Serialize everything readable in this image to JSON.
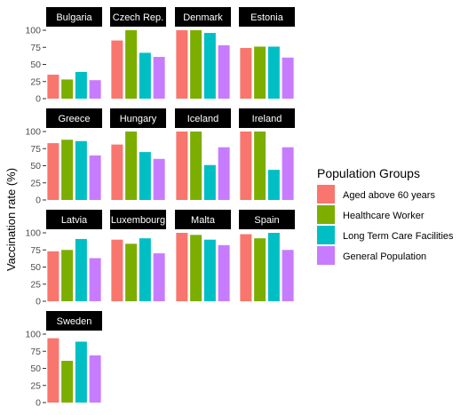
{
  "chart_data": {
    "type": "bar",
    "ylabel": "Vaccination rate (%)",
    "ylim": [
      0,
      100
    ],
    "yticks": [
      0,
      25,
      50,
      75,
      100
    ],
    "legend": {
      "title": "Population Groups",
      "position": "right"
    },
    "series": [
      {
        "name": "Aged above 60 years",
        "color": "#F8766D"
      },
      {
        "name": "Healthcare Worker",
        "color": "#7CAE00"
      },
      {
        "name": "Long Term Care Facilities",
        "color": "#00BFC4"
      },
      {
        "name": "General Population",
        "color": "#C77CFF"
      }
    ],
    "facets": [
      {
        "label": "Bulgaria",
        "values": [
          35,
          28,
          39,
          27
        ]
      },
      {
        "label": "Czech Rep.",
        "values": [
          85,
          100,
          67,
          61
        ]
      },
      {
        "label": "Denmark",
        "values": [
          100,
          100,
          96,
          78
        ]
      },
      {
        "label": "Estonia",
        "values": [
          74,
          76,
          76,
          60
        ]
      },
      {
        "label": "Greece",
        "values": [
          83,
          88,
          86,
          65
        ]
      },
      {
        "label": "Hungary",
        "values": [
          81,
          100,
          70,
          60
        ]
      },
      {
        "label": "Iceland",
        "values": [
          100,
          100,
          51,
          77
        ]
      },
      {
        "label": "Ireland",
        "values": [
          100,
          100,
          44,
          77
        ]
      },
      {
        "label": "Latvia",
        "values": [
          73,
          75,
          91,
          63
        ]
      },
      {
        "label": "Luxembourg",
        "values": [
          90,
          84,
          92,
          70
        ]
      },
      {
        "label": "Malta",
        "values": [
          100,
          97,
          90,
          82
        ]
      },
      {
        "label": "Spain",
        "values": [
          98,
          92,
          100,
          75
        ]
      },
      {
        "label": "Sweden",
        "values": [
          94,
          61,
          89,
          69
        ]
      }
    ],
    "grid": false
  }
}
